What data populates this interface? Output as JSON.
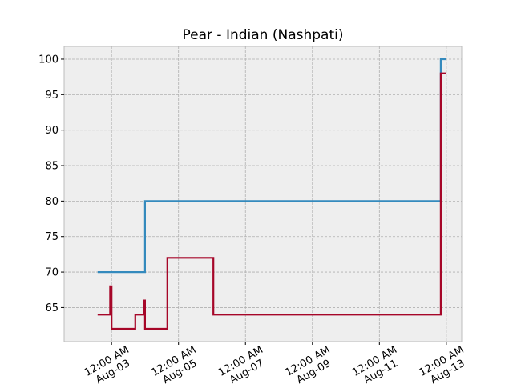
{
  "chart_data": {
    "type": "line",
    "step": "post",
    "title": "Pear - Indian (Nashpati)",
    "xlabel": "",
    "ylabel": "",
    "x_axis": "datetime",
    "xlim": [
      "2025-08-01T14:00",
      "2025-08-13T11:00"
    ],
    "ylim": [
      60.2,
      101.8
    ],
    "y_ticks": [
      65,
      70,
      75,
      80,
      85,
      90,
      95,
      100
    ],
    "x_ticks": [
      {
        "at": "2025-08-03T00:00",
        "line1": "12:00 AM",
        "line2": "Aug-03"
      },
      {
        "at": "2025-08-05T00:00",
        "line1": "12:00 AM",
        "line2": "Aug-05"
      },
      {
        "at": "2025-08-07T00:00",
        "line1": "12:00 AM",
        "line2": "Aug-07"
      },
      {
        "at": "2025-08-09T00:00",
        "line1": "12:00 AM",
        "line2": "Aug-09"
      },
      {
        "at": "2025-08-11T00:00",
        "line1": "12:00 AM",
        "line2": "Aug-11"
      },
      {
        "at": "2025-08-13T00:00",
        "line1": "12:00 AM",
        "line2": "Aug-13"
      }
    ],
    "grid": true,
    "legend": "none",
    "background": "#eeeeee",
    "series": [
      {
        "color": "#348abd",
        "points": [
          [
            "2025-08-02T14:00",
            70
          ],
          [
            "2025-08-04T00:00",
            80
          ],
          [
            "2025-08-12T20:00",
            100
          ],
          [
            "2025-08-13T00:00",
            100
          ]
        ]
      },
      {
        "color": "#a60628",
        "points": [
          [
            "2025-08-02T14:00",
            64
          ],
          [
            "2025-08-02T23:00",
            68
          ],
          [
            "2025-08-03T00:00",
            62
          ],
          [
            "2025-08-03T17:00",
            64
          ],
          [
            "2025-08-03T23:00",
            66
          ],
          [
            "2025-08-04T00:00",
            62
          ],
          [
            "2025-08-04T16:00",
            72
          ],
          [
            "2025-08-06T01:00",
            64
          ],
          [
            "2025-08-12T20:00",
            98
          ],
          [
            "2025-08-13T00:00",
            98
          ]
        ]
      }
    ]
  }
}
